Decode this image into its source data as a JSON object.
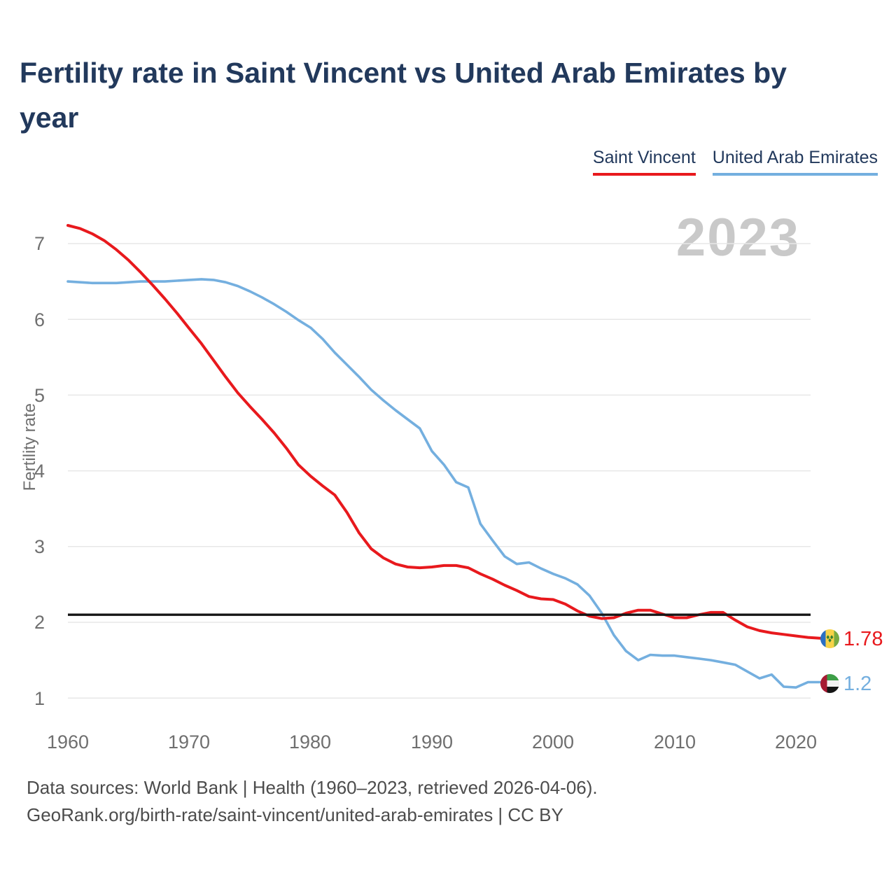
{
  "title": "Fertility rate in Saint Vincent vs United Arab Emirates by year",
  "title_lines": [
    "Fertility rate in Saint Vincent vs United Arab Emirates by",
    "year"
  ],
  "watermark": "2023",
  "colors": {
    "title": "#22395c",
    "saint_vincent": "#e8191d",
    "united_arab_emirates": "#74afdf",
    "reference_line": "#161616",
    "axis_text": "#6f6f6f",
    "watermark": "#c9c9c9",
    "footer": "#4c4c4c",
    "grid": "#e7e7e7"
  },
  "legend": {
    "items": [
      {
        "label": "Saint Vincent",
        "color": "#e8191d"
      },
      {
        "label": "United Arab Emirates",
        "color": "#74afdf"
      }
    ]
  },
  "y_axis": {
    "label": "Fertility rate",
    "ticks": [
      "7",
      "6",
      "5",
      "4",
      "3",
      "2",
      "1"
    ]
  },
  "x_axis": {
    "ticks": [
      "1960",
      "1970",
      "1980",
      "1990",
      "2000",
      "2010",
      "2020"
    ]
  },
  "end_labels": [
    {
      "series": "Saint Vincent",
      "value": "1.78",
      "color": "#e8191d",
      "flag": "saint-vincent-flag"
    },
    {
      "series": "United Arab Emirates",
      "value": "1.2",
      "color": "#74afdf",
      "flag": "united-arab-emirates-flag"
    }
  ],
  "footer": {
    "line1": "Data sources: World Bank | Health (1960–2023, retrieved 2026-04-06).",
    "line2": "GeoRank.org/birth-rate/saint-vincent/united-arab-emirates | CC BY"
  },
  "chart_data": {
    "type": "line",
    "title": "Fertility rate in Saint Vincent vs United Arab Emirates by year",
    "xlabel": "",
    "ylabel": "Fertility rate",
    "xlim": [
      1960,
      2023
    ],
    "ylim": [
      1,
      7
    ],
    "grid": true,
    "legend_position": "top-right",
    "current_year_label": "2023",
    "replacement_line": 2.1,
    "y_gridlines": [
      1,
      2,
      3,
      4,
      5,
      6,
      7
    ],
    "years": [
      1960,
      1961,
      1962,
      1963,
      1964,
      1965,
      1966,
      1967,
      1968,
      1969,
      1970,
      1971,
      1972,
      1973,
      1974,
      1975,
      1976,
      1977,
      1978,
      1979,
      1980,
      1981,
      1982,
      1983,
      1984,
      1985,
      1986,
      1987,
      1988,
      1989,
      1990,
      1991,
      1992,
      1993,
      1994,
      1995,
      1996,
      1997,
      1998,
      1999,
      2000,
      2001,
      2002,
      2003,
      2004,
      2005,
      2006,
      2007,
      2008,
      2009,
      2010,
      2011,
      2012,
      2013,
      2014,
      2015,
      2016,
      2017,
      2018,
      2019,
      2020,
      2021,
      2022,
      2023
    ],
    "series": [
      {
        "name": "Saint Vincent",
        "id": "saint-vincent",
        "color": "#e8191d",
        "end_value": 1.78,
        "values": [
          7.24,
          7.2,
          7.13,
          7.04,
          6.92,
          6.78,
          6.62,
          6.45,
          6.27,
          6.08,
          5.88,
          5.68,
          5.46,
          5.24,
          5.03,
          4.85,
          4.68,
          4.5,
          4.3,
          4.08,
          3.93,
          3.8,
          3.68,
          3.45,
          3.18,
          2.97,
          2.85,
          2.77,
          2.73,
          2.72,
          2.73,
          2.75,
          2.75,
          2.72,
          2.64,
          2.57,
          2.49,
          2.42,
          2.34,
          2.31,
          2.3,
          2.24,
          2.15,
          2.08,
          2.05,
          2.06,
          2.12,
          2.16,
          2.16,
          2.11,
          2.06,
          2.06,
          2.1,
          2.13,
          2.13,
          2.03,
          1.94,
          1.89,
          1.86,
          1.84,
          1.82,
          1.8,
          1.79,
          1.78
        ]
      },
      {
        "name": "United Arab Emirates",
        "id": "united-arab-emirates",
        "color": "#74afdf",
        "end_value": 1.2,
        "values": [
          6.5,
          6.49,
          6.48,
          6.48,
          6.48,
          6.49,
          6.5,
          6.5,
          6.5,
          6.51,
          6.52,
          6.53,
          6.52,
          6.49,
          6.44,
          6.37,
          6.29,
          6.2,
          6.1,
          5.99,
          5.89,
          5.74,
          5.56,
          5.4,
          5.24,
          5.07,
          4.93,
          4.8,
          4.68,
          4.56,
          4.26,
          4.08,
          3.85,
          3.78,
          3.3,
          3.08,
          2.87,
          2.77,
          2.79,
          2.71,
          2.64,
          2.58,
          2.5,
          2.35,
          2.12,
          1.83,
          1.62,
          1.5,
          1.57,
          1.56,
          1.56,
          1.54,
          1.52,
          1.5,
          1.47,
          1.44,
          1.35,
          1.26,
          1.31,
          1.15,
          1.14,
          1.21,
          1.21,
          1.2
        ]
      }
    ]
  }
}
